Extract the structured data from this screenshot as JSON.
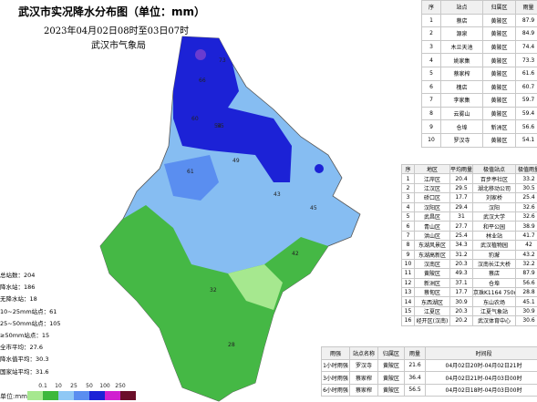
{
  "header": {
    "title": "武汉市实况降水分布图（单位：mm）",
    "subtitle": "2023年04月02日08时至03日07时",
    "agency": "武汉市气象局"
  },
  "stats": [
    "总站数：204",
    "降水站：186",
    "无降水站：18",
    "10~25mm站点：61",
    "25~50mm站点：105",
    "≥50mm站点：15",
    "全市平均：27.6",
    "降水值平均：30.3",
    "国家站平均：31.6"
  ],
  "legend": {
    "unit": "单位:mm",
    "ticks": [
      0.1,
      10,
      25,
      50,
      100,
      250
    ],
    "colors": [
      "#a6e88f",
      "#3db83d",
      "#8fc8f5",
      "#5a8ef0",
      "#1c22d6",
      "#d020d0",
      "#6b0f2a"
    ]
  },
  "map_labels": [
    73,
    66,
    55,
    60,
    54,
    61,
    49,
    43,
    45,
    42,
    32,
    28
  ],
  "top_stations": {
    "columns": [
      "序",
      "站点",
      "归属区",
      "雨量"
    ],
    "rows": [
      [
        1,
        "蔡店",
        "黄陂区",
        87.9
      ],
      [
        2,
        "源泉",
        "黄陂区",
        84.9
      ],
      [
        3,
        "木兰天池",
        "黄陂区",
        74.4
      ],
      [
        4,
        "姚家集",
        "黄陂区",
        73.3
      ],
      [
        5,
        "蔡家榨",
        "黄陂区",
        61.6
      ],
      [
        6,
        "槐店",
        "黄陂区",
        60.7
      ],
      [
        7,
        "李家集",
        "黄陂区",
        59.7
      ],
      [
        8,
        "云雾山",
        "黄陂区",
        59.4
      ],
      [
        9,
        "仓埠",
        "新洲区",
        56.6
      ],
      [
        10,
        "罗汉寺",
        "黄陂区",
        54.1
      ]
    ]
  },
  "district_table": {
    "columns": [
      "序",
      "地区",
      "平均雨量",
      "极值站点",
      "极值雨量"
    ],
    "rows": [
      [
        1,
        "江岸区",
        20.4,
        "百步亭社区",
        33.2
      ],
      [
        2,
        "江汉区",
        29.5,
        "湖北移动公司",
        30.5
      ],
      [
        3,
        "硚口区",
        17.7,
        "刘家桥",
        25.4
      ],
      [
        4,
        "汉阳区",
        29.4,
        "汉阳",
        32.6
      ],
      [
        5,
        "武昌区",
        31.0,
        "武汉大学",
        32.6
      ],
      [
        6,
        "青山区",
        27.7,
        "和平公园",
        38.9
      ],
      [
        7,
        "洪山区",
        25.4,
        "林业站",
        41.7
      ],
      [
        8,
        "东湖风景区",
        34.3,
        "武汉植物园",
        42.0
      ],
      [
        9,
        "东湖高新区",
        31.2,
        "豹澥",
        43.2
      ],
      [
        10,
        "汉南区",
        20.3,
        "汉南长江大桥",
        32.2
      ],
      [
        11,
        "黄陂区",
        49.3,
        "蔡店",
        87.9
      ],
      [
        12,
        "新洲区",
        37.1,
        "仓埠",
        56.6
      ],
      [
        13,
        "蔡甸区",
        17.7,
        "京珠K1164 750m",
        28.8
      ],
      [
        14,
        "东西湖区",
        30.9,
        "东山农场",
        45.1
      ],
      [
        15,
        "江夏区",
        20.3,
        "江夏气象站",
        30.9
      ],
      [
        16,
        "经开区(汉南)",
        20.2,
        "武汉体育中心",
        30.6
      ]
    ]
  },
  "intensity_table": {
    "columns": [
      "雨强",
      "站点名称",
      "归属区",
      "雨量",
      "时间段"
    ],
    "rows": [
      [
        "1小时雨强",
        "罗汉寺",
        "黄陂区",
        21.6,
        "04月02日20时-04月02日21时"
      ],
      [
        "3小时雨强",
        "蔡家榨",
        "黄陂区",
        36.4,
        "04月02日21时-04月03日00时"
      ],
      [
        "6小时雨强",
        "蔡家榨",
        "黄陂区",
        56.5,
        "04月02日18时-04月03日00时"
      ]
    ]
  }
}
